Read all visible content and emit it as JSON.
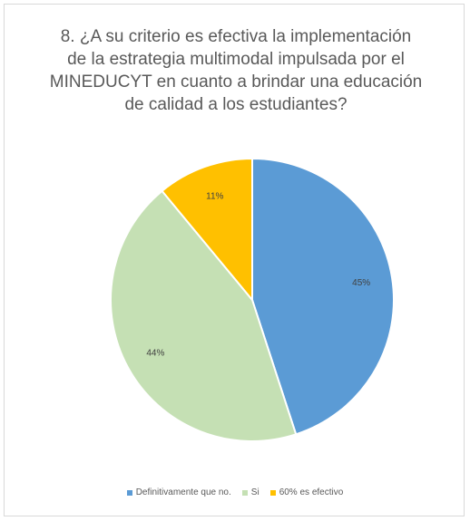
{
  "chart_data": {
    "type": "pie",
    "title_lines": [
      "8. ¿A su criterio es efectiva la implementación",
      "de la estrategia multimodal impulsada por el",
      "MINEDUCYT en cuanto a brindar una educación",
      "de calidad a los estudiantes?"
    ],
    "slices": [
      {
        "label": "Definitivamente que no.",
        "value": 45,
        "value_label": "45%",
        "color": "#5b9bd5"
      },
      {
        "label": "Si",
        "value": 44,
        "value_label": "44%",
        "color": "#c5e0b4"
      },
      {
        "label": "60% es efectivo",
        "value": 11,
        "value_label": "11%",
        "color": "#ffc000"
      }
    ],
    "legend_position": "bottom"
  }
}
